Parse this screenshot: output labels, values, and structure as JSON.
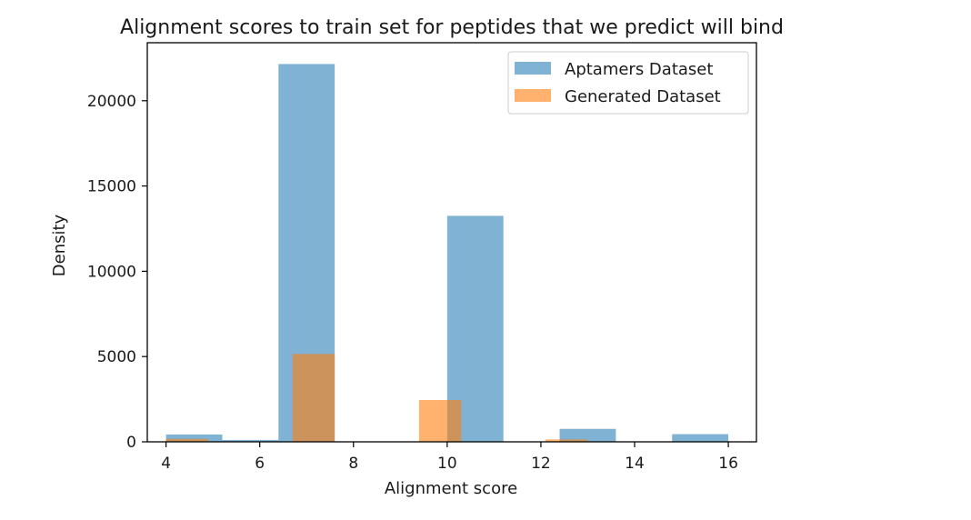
{
  "chart_data": {
    "type": "bar",
    "title": "Alignment scores to train set for peptides that we predict will bind",
    "xlabel": "Alignment score",
    "ylabel": "Density",
    "xlim": [
      3.6,
      16.6
    ],
    "ylim": [
      0,
      23400
    ],
    "xticks": [
      4,
      6,
      8,
      10,
      12,
      14,
      16
    ],
    "yticks": [
      0,
      5000,
      10000,
      15000,
      20000
    ],
    "grid": false,
    "legend_position": "top-right",
    "series": [
      {
        "name": "Aptamers Dataset",
        "color": "#1f77b4",
        "opacity": 0.57,
        "bins": [
          {
            "x0": 4.0,
            "x1": 5.2,
            "value": 430
          },
          {
            "x0": 5.2,
            "x1": 6.4,
            "value": 110
          },
          {
            "x0": 6.4,
            "x1": 7.6,
            "value": 22150
          },
          {
            "x0": 7.6,
            "x1": 8.8,
            "value": 0
          },
          {
            "x0": 8.8,
            "x1": 10.0,
            "value": 0
          },
          {
            "x0": 10.0,
            "x1": 11.2,
            "value": 13250
          },
          {
            "x0": 11.2,
            "x1": 12.4,
            "value": 0
          },
          {
            "x0": 12.4,
            "x1": 13.6,
            "value": 760
          },
          {
            "x0": 13.6,
            "x1": 14.8,
            "value": 0
          },
          {
            "x0": 14.8,
            "x1": 16.0,
            "value": 450
          }
        ]
      },
      {
        "name": "Generated Dataset",
        "color": "#ff7f0e",
        "opacity": 0.6,
        "bins": [
          {
            "x0": 4.0,
            "x1": 4.9,
            "value": 170
          },
          {
            "x0": 4.9,
            "x1": 5.8,
            "value": 0
          },
          {
            "x0": 5.8,
            "x1": 6.7,
            "value": 0
          },
          {
            "x0": 6.7,
            "x1": 7.6,
            "value": 5150
          },
          {
            "x0": 7.6,
            "x1": 8.5,
            "value": 0
          },
          {
            "x0": 8.5,
            "x1": 9.4,
            "value": 0
          },
          {
            "x0": 9.4,
            "x1": 10.3,
            "value": 2450
          },
          {
            "x0": 10.3,
            "x1": 11.2,
            "value": 0
          },
          {
            "x0": 11.2,
            "x1": 12.1,
            "value": 0
          },
          {
            "x0": 12.1,
            "x1": 13.0,
            "value": 140
          }
        ]
      }
    ]
  }
}
